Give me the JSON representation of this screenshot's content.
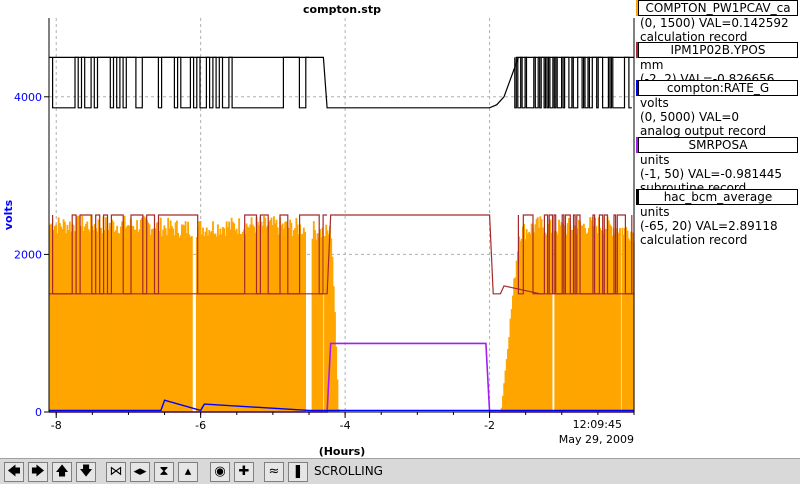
{
  "window": {
    "status_text": "SCROLLING"
  },
  "colors": {
    "orange": "#ffa500",
    "brown": "#a52a2a",
    "blue": "#0000ff",
    "purple": "#a020f0",
    "black": "#000000"
  },
  "chart_data": {
    "type": "line",
    "title": "compton.stp",
    "xlabel": "(Hours)",
    "ylabel": "volts",
    "xlim": [
      -8.1,
      0
    ],
    "ylim": [
      0,
      5000
    ],
    "x_ticks": [
      "-8",
      "-6",
      "-4",
      "-2"
    ],
    "y_ticks": [
      "0",
      "2000",
      "4000"
    ],
    "time_label": "12:09:45",
    "date_label": "May 29, 2009",
    "grid": true,
    "legend_position": "right",
    "series": [
      {
        "name": "COMPTON_PW1PCAV_ca",
        "color": "#ffa500",
        "range": "(0, 1500) VAL=0.142592",
        "record": "calculation record",
        "units": "",
        "x": [
          -8.1,
          -6.8,
          -6.3,
          -5.2,
          -4.5,
          -4.35,
          -4.2,
          -4.1,
          -2.0,
          -1.85,
          -1.6,
          -1.3,
          -1.2,
          -0.5,
          -0.2,
          0
        ],
        "y": [
          2500,
          2500,
          2450,
          2500,
          2450,
          2400,
          2400,
          0,
          0,
          0,
          2400,
          2500,
          2450,
          2500,
          2450,
          2400
        ]
      },
      {
        "name": "IPM1P02B.YPOS",
        "color": "#a52a2a",
        "range": "(-2, 2) VAL=-0.826656",
        "record": "",
        "units": "mm",
        "x": [
          -8.1,
          -6.5,
          -4.5,
          -4.25,
          -4.2,
          -2.0,
          -1.95,
          -1.85,
          -1.8,
          -1.3,
          -0.5,
          0
        ],
        "y": [
          1500,
          1500,
          1500,
          1500,
          2500,
          2500,
          1500,
          1500,
          1600,
          1500,
          1500,
          1500
        ]
      },
      {
        "name": "compton:RATE_G",
        "color": "#0000ff",
        "range": "(0, 5000) VAL=0",
        "record": "analog output record",
        "units": "volts",
        "x": [
          -8.1,
          -6.55,
          -6.5,
          -6.0,
          -5.95,
          -4.5,
          -4.0,
          -2.0,
          -1.5,
          0
        ],
        "y": [
          20,
          20,
          150,
          20,
          100,
          20,
          20,
          20,
          20,
          20
        ]
      },
      {
        "name": "SMRPOSA",
        "color": "#a020f0",
        "range": "(-1, 50) VAL=-0.981445",
        "record": "subroutine record",
        "units": "units",
        "x": [
          -8.1,
          -4.25,
          -4.2,
          -2.05,
          -2.0,
          0
        ],
        "y": [
          0,
          0,
          870,
          870,
          0,
          0
        ]
      },
      {
        "name": "hac_bcm_average",
        "color": "#000000",
        "range": "(-65, 20) VAL=2.89118",
        "record": "calculation record",
        "units": "units",
        "x": [
          -8.1,
          -5.0,
          -4.45,
          -4.3,
          -4.25,
          -2.0,
          -1.9,
          -1.8,
          -1.6,
          -0.5,
          0
        ],
        "y": [
          4500,
          4500,
          4500,
          4500,
          3860,
          3860,
          3900,
          4000,
          4500,
          4500,
          4500
        ]
      }
    ]
  }
}
